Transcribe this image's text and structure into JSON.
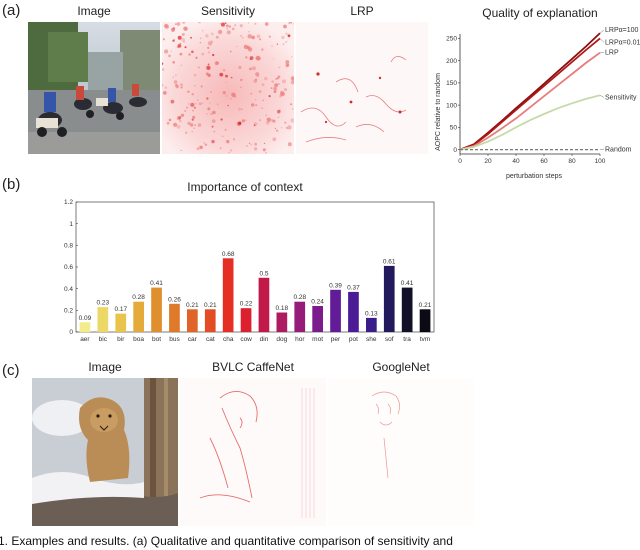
{
  "panel_a": {
    "label": "(a)",
    "titles": {
      "image": "Image",
      "sensitivity": "Sensitivity",
      "lrp": "LRP"
    }
  },
  "panel_b": {
    "label": "(b)"
  },
  "panel_c": {
    "label": "(c)",
    "titles": {
      "image": "Image",
      "caffenet": "BVLC CaffeNet",
      "googlenet": "GoogleNet"
    }
  },
  "caption_fragment": "1. Examples and results. (a) Qualitative and quantitative comparison of sensitivity and",
  "chart_data": [
    {
      "type": "line",
      "title": "Quality of explanation",
      "xlabel": "perturbation steps",
      "ylabel": "AOPC relative to random",
      "xlim": [
        0,
        100
      ],
      "ylim": [
        -10,
        260
      ],
      "xticks": [
        0,
        20,
        40,
        60,
        80,
        100
      ],
      "yticks": [
        0,
        50,
        100,
        150,
        200,
        250
      ],
      "series": [
        {
          "name": "LRPα=100",
          "color": "#8b1010",
          "x": [
            0,
            10,
            20,
            30,
            40,
            50,
            60,
            70,
            80,
            90,
            100
          ],
          "y": [
            0,
            12,
            38,
            65,
            93,
            120,
            148,
            176,
            204,
            232,
            262
          ]
        },
        {
          "name": "LRPα=0.01",
          "color": "#b31515",
          "x": [
            0,
            10,
            20,
            30,
            40,
            50,
            60,
            70,
            80,
            90,
            100
          ],
          "y": [
            0,
            11,
            35,
            62,
            89,
            116,
            143,
            170,
            197,
            224,
            250
          ]
        },
        {
          "name": "LRP",
          "color": "#e87c7c",
          "x": [
            0,
            10,
            20,
            30,
            40,
            50,
            60,
            70,
            80,
            90,
            100
          ],
          "y": [
            0,
            8,
            27,
            48,
            70,
            95,
            120,
            145,
            170,
            195,
            218
          ]
        },
        {
          "name": "Sensitivity",
          "color": "#c4dba8",
          "x": [
            0,
            10,
            20,
            30,
            40,
            50,
            60,
            70,
            80,
            90,
            100
          ],
          "y": [
            0,
            6,
            18,
            33,
            50,
            66,
            80,
            93,
            104,
            114,
            122
          ]
        },
        {
          "name": "Random",
          "color": "#777777",
          "dashed": true,
          "x": [
            0,
            100
          ],
          "y": [
            0,
            0
          ]
        }
      ],
      "legend": "inline-right"
    },
    {
      "type": "bar",
      "title": "Importance of context",
      "categories": [
        "aer",
        "bic",
        "bir",
        "boa",
        "bot",
        "bus",
        "car",
        "cat",
        "cha",
        "cow",
        "din",
        "dog",
        "hor",
        "mot",
        "per",
        "pot",
        "she",
        "sof",
        "tra",
        "tvm"
      ],
      "values": [
        0.09,
        0.23,
        0.17,
        0.28,
        0.41,
        0.26,
        0.21,
        0.21,
        0.68,
        0.22,
        0.5,
        0.18,
        0.28,
        0.24,
        0.39,
        0.37,
        0.13,
        0.61,
        0.41,
        0.21
      ],
      "labels": [
        "0.09",
        "0.23",
        "0.17",
        "0.28",
        "0.41",
        "0.26",
        "0.21",
        "0.21",
        "0.68",
        "0.22",
        "0.5",
        "0.18",
        "0.28",
        "0.24",
        "0.39",
        "0.37",
        "0.13",
        "0.61",
        "0.41",
        "0.21"
      ],
      "colors": [
        "#f4ec8c",
        "#ecd866",
        "#e8c44a",
        "#e4aa3a",
        "#e08f2e",
        "#df7a2a",
        "#e06428",
        "#e24d26",
        "#e52f24",
        "#dd2030",
        "#c21a48",
        "#ad1c60",
        "#951c78",
        "#7c1c8c",
        "#621c98",
        "#4c1c96",
        "#3a1c8a",
        "#221a5c",
        "#121028",
        "#0c0a14"
      ],
      "ylim": [
        0,
        1.2
      ],
      "yticks": [
        0,
        0.2,
        0.4,
        0.6,
        0.8,
        1,
        1.2
      ],
      "ytick_labels": [
        "0",
        "0.2",
        "0.4",
        "0.6",
        "0.8",
        "1",
        "1.2"
      ],
      "grid": false
    }
  ]
}
